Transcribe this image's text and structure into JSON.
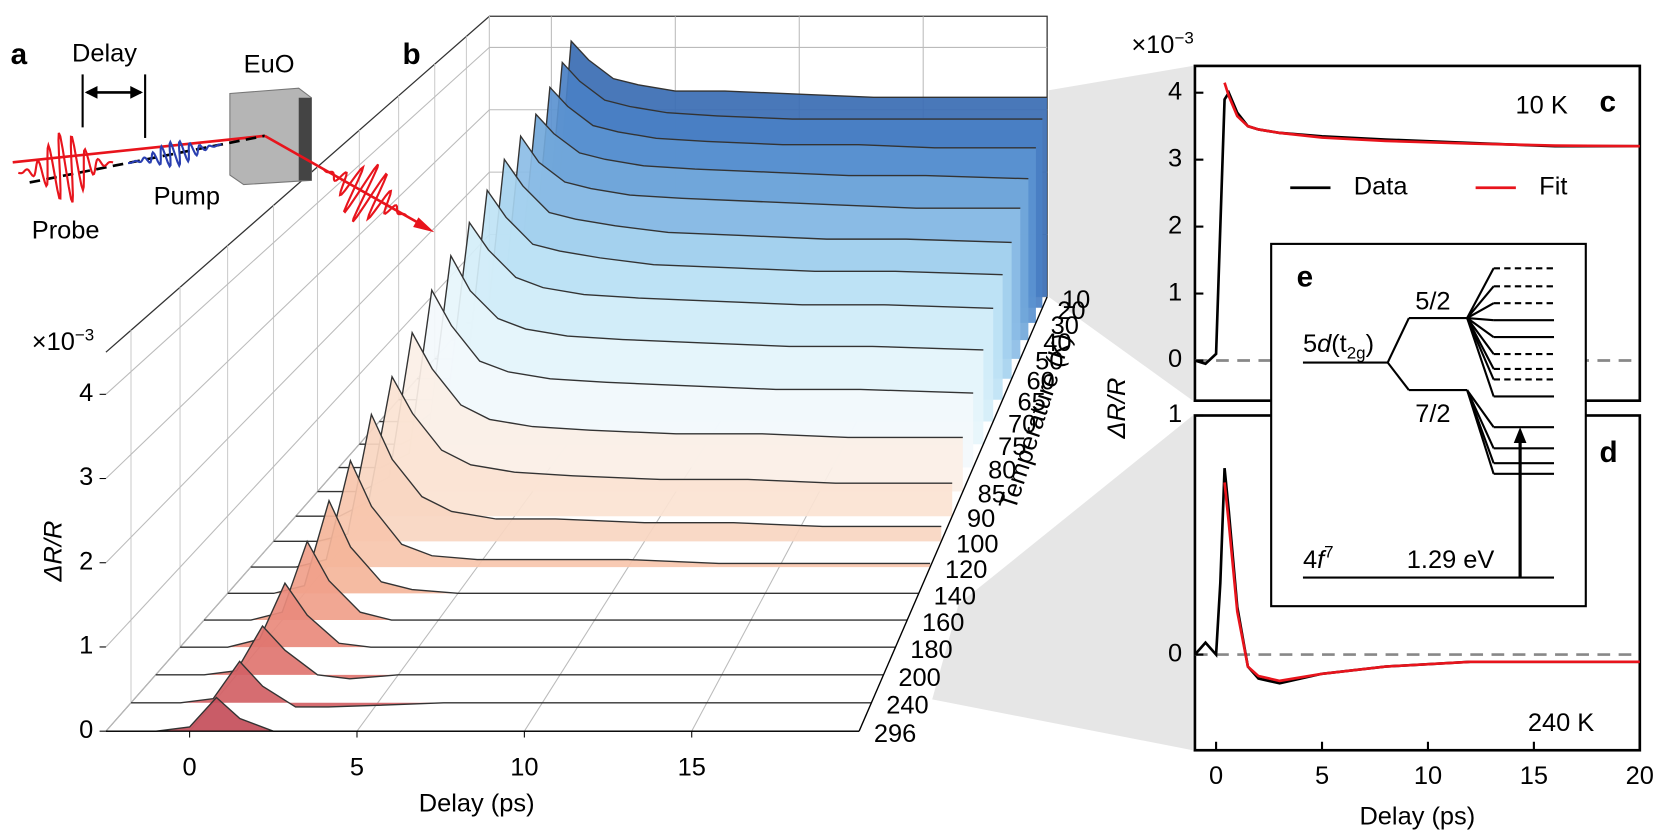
{
  "panel_labels": {
    "a": "a",
    "b": "b",
    "c": "c",
    "d": "d",
    "e": "e"
  },
  "schematic": {
    "delay": "Delay",
    "sample": "EuO",
    "pump": "Pump",
    "probe": "Probe"
  },
  "level_diagram": {
    "excited": [
      "5",
      "d",
      "(t",
      "2g",
      ")"
    ],
    "upper": "5/2",
    "lower": "7/2",
    "ground": [
      "4",
      "f",
      "7"
    ],
    "energy": "1.29 eV"
  },
  "chart_data": [
    {
      "type": "waterfall",
      "xlabel": "Delay (ps)",
      "ylabel": "ΔR/R",
      "y_multiplier": {
        "base": "×10",
        "exponent": "−3"
      },
      "depth_label": "Temperature (K)",
      "xlim": [
        -2.5,
        20
      ],
      "xticks": [
        0,
        5,
        10,
        15
      ],
      "ylim": [
        0,
        4.5
      ],
      "yticks": [
        0,
        1,
        2,
        3,
        4
      ],
      "grid": true,
      "x": [
        -2.5,
        -1,
        0,
        0.8,
        1.5,
        2.5,
        3.5,
        5,
        7,
        10,
        13,
        16,
        20
      ],
      "series": [
        {
          "name": "10",
          "color": "#3a6db3",
          "values": [
            0,
            0,
            0.3,
            4.1,
            3.8,
            3.5,
            3.4,
            3.3,
            3.3,
            3.25,
            3.2,
            3.2,
            3.2
          ]
        },
        {
          "name": "20",
          "color": "#4a80c4",
          "values": [
            0,
            0,
            0.3,
            3.9,
            3.6,
            3.3,
            3.2,
            3.1,
            3.05,
            3.0,
            3.0,
            3.0,
            3.0
          ]
        },
        {
          "name": "30",
          "color": "#5b93d0",
          "values": [
            0,
            0,
            0.3,
            3.7,
            3.4,
            3.1,
            3.0,
            2.9,
            2.85,
            2.8,
            2.8,
            2.75,
            2.75
          ]
        },
        {
          "name": "40",
          "color": "#72a8da",
          "values": [
            0,
            0,
            0.3,
            3.5,
            3.2,
            2.9,
            2.8,
            2.7,
            2.65,
            2.6,
            2.55,
            2.55,
            2.5
          ]
        },
        {
          "name": "50",
          "color": "#8cbde6",
          "values": [
            0,
            0,
            0.3,
            3.4,
            3.0,
            2.7,
            2.6,
            2.5,
            2.45,
            2.4,
            2.35,
            2.3,
            2.3
          ]
        },
        {
          "name": "60",
          "color": "#a6d2ef",
          "values": [
            0,
            0,
            0.3,
            3.3,
            2.9,
            2.5,
            2.4,
            2.3,
            2.2,
            2.15,
            2.1,
            2.1,
            2.05
          ]
        },
        {
          "name": "65",
          "color": "#bfe3f5",
          "values": [
            0,
            0,
            0.3,
            3.1,
            2.7,
            2.3,
            2.2,
            2.1,
            2.0,
            1.95,
            1.9,
            1.9,
            1.85
          ]
        },
        {
          "name": "70",
          "color": "#d4eef9",
          "values": [
            0,
            0,
            0.3,
            2.9,
            2.5,
            2.1,
            1.95,
            1.85,
            1.8,
            1.75,
            1.7,
            1.7,
            1.65
          ]
        },
        {
          "name": "75",
          "color": "#e6f5fb",
          "values": [
            0,
            0,
            0.2,
            2.7,
            2.2,
            1.8,
            1.65,
            1.55,
            1.5,
            1.45,
            1.4,
            1.4,
            1.35
          ]
        },
        {
          "name": "80",
          "color": "#f3f9fc",
          "values": [
            0,
            0,
            0.2,
            2.5,
            2.0,
            1.5,
            1.35,
            1.25,
            1.2,
            1.15,
            1.1,
            1.1,
            1.05
          ]
        },
        {
          "name": "85",
          "color": "#fbefe6",
          "values": [
            0,
            0,
            0.2,
            2.2,
            1.7,
            1.2,
            1.0,
            0.9,
            0.85,
            0.8,
            0.8,
            0.75,
            0.75
          ]
        },
        {
          "name": "90",
          "color": "#fbe3d3",
          "values": [
            0,
            0,
            0.2,
            1.9,
            1.4,
            0.9,
            0.7,
            0.6,
            0.55,
            0.5,
            0.5,
            0.45,
            0.45
          ]
        },
        {
          "name": "100",
          "color": "#f9d6c1",
          "values": [
            0,
            0,
            0.1,
            1.7,
            1.1,
            0.6,
            0.4,
            0.3,
            0.3,
            0.25,
            0.25,
            0.2,
            0.2
          ]
        },
        {
          "name": "120",
          "color": "#f7c6ad",
          "values": [
            0,
            0,
            0.1,
            1.4,
            0.8,
            0.3,
            0.15,
            0.1,
            0.1,
            0.1,
            0.05,
            0.05,
            0.05
          ]
        },
        {
          "name": "140",
          "color": "#f4b59a",
          "values": [
            0,
            0,
            0.1,
            1.2,
            0.6,
            0.15,
            0.05,
            0,
            0,
            0,
            0,
            0,
            0
          ]
        },
        {
          "name": "160",
          "color": "#f0a08a",
          "values": [
            0,
            0,
            0.1,
            1.0,
            0.5,
            0.1,
            0,
            0,
            0,
            0,
            0,
            0,
            0
          ]
        },
        {
          "name": "180",
          "color": "#e98a7c",
          "values": [
            0,
            0,
            0.1,
            0.8,
            0.4,
            0.05,
            0,
            0,
            0,
            0,
            0,
            0,
            0
          ]
        },
        {
          "name": "200",
          "color": "#df7570",
          "values": [
            0,
            0,
            0.05,
            0.6,
            0.3,
            0,
            -0.05,
            0,
            0,
            0,
            0,
            0,
            0
          ]
        },
        {
          "name": "240",
          "color": "#d36165",
          "values": [
            0,
            0,
            0.05,
            0.5,
            0.2,
            -0.05,
            -0.05,
            -0.03,
            0,
            0,
            0,
            0,
            0
          ]
        },
        {
          "name": "296",
          "color": "#c44e5a",
          "values": [
            0,
            0,
            0.05,
            0.4,
            0.15,
            0,
            0,
            0,
            0,
            0,
            0,
            0,
            0
          ]
        }
      ]
    },
    {
      "type": "line",
      "ylabel": "ΔR/R",
      "y_multiplier": {
        "base": "×10",
        "exponent": "−3"
      },
      "annotation": "10 K",
      "legend": "upper-center",
      "xlim": [
        -1,
        20
      ],
      "ylim": [
        -0.6,
        4.4
      ],
      "yticks": [
        0,
        1,
        2,
        3,
        4
      ],
      "zero_line": true,
      "x": [
        -1,
        -0.5,
        0,
        0.2,
        0.4,
        0.6,
        1,
        1.5,
        2,
        3,
        5,
        8,
        12,
        16,
        20
      ],
      "series": [
        {
          "name": "Data",
          "color": "#000000",
          "values": [
            0,
            -0.05,
            0.1,
            2.0,
            3.9,
            4.0,
            3.7,
            3.5,
            3.45,
            3.4,
            3.35,
            3.3,
            3.25,
            3.2,
            3.2
          ]
        },
        {
          "name": "Fit",
          "color": "#e8141c",
          "values": [
            null,
            null,
            null,
            null,
            4.15,
            3.95,
            3.65,
            3.5,
            3.45,
            3.4,
            3.33,
            3.28,
            3.24,
            3.21,
            3.2
          ]
        }
      ]
    },
    {
      "type": "line",
      "xlabel": "Delay (ps)",
      "annotation": "240 K",
      "xlim": [
        -1,
        20
      ],
      "xticks": [
        0,
        5,
        10,
        15,
        20
      ],
      "ylim": [
        -0.4,
        1
      ],
      "yticks": [
        0,
        1
      ],
      "zero_line": true,
      "x": [
        -1,
        -0.5,
        0,
        0.2,
        0.4,
        0.6,
        1,
        1.5,
        2,
        3,
        5,
        8,
        12,
        16,
        20
      ],
      "series": [
        {
          "name": "Data",
          "color": "#000000",
          "values": [
            0,
            0.05,
            0,
            0.3,
            0.78,
            0.6,
            0.2,
            -0.05,
            -0.1,
            -0.12,
            -0.08,
            -0.05,
            -0.03,
            -0.03,
            -0.03
          ]
        },
        {
          "name": "Fit",
          "color": "#e8141c",
          "values": [
            null,
            null,
            null,
            null,
            0.72,
            0.55,
            0.18,
            -0.05,
            -0.09,
            -0.11,
            -0.08,
            -0.05,
            -0.03,
            -0.03,
            -0.03
          ]
        }
      ]
    }
  ]
}
